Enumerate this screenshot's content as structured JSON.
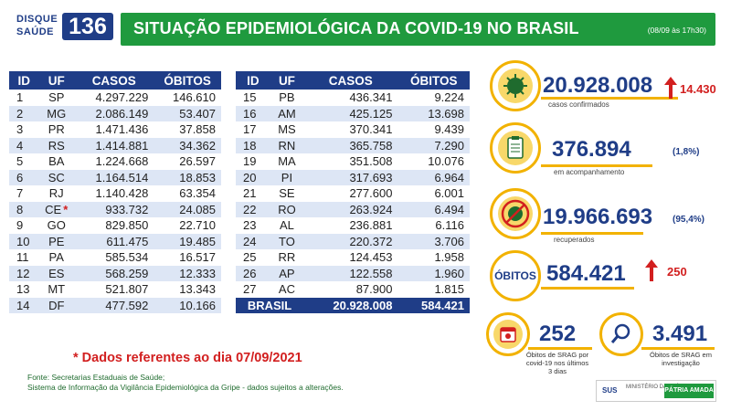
{
  "header": {
    "logo_disque": "DISQUE",
    "logo_saude": "SAÚDE",
    "logo_number": "136",
    "title": "SITUAÇÃO EPIDEMIOLÓGICA DA COVID-19 NO BRASIL",
    "timestamp": "(08/09 às 17h30)"
  },
  "table": {
    "headers": [
      "ID",
      "UF",
      "CASOS",
      "ÓBITOS"
    ],
    "left_rows": [
      [
        "1",
        "SP",
        "4.297.229",
        "146.610"
      ],
      [
        "2",
        "MG",
        "2.086.149",
        "53.407"
      ],
      [
        "3",
        "PR",
        "1.471.436",
        "37.858"
      ],
      [
        "4",
        "RS",
        "1.414.881",
        "34.362"
      ],
      [
        "5",
        "BA",
        "1.224.668",
        "26.597"
      ],
      [
        "6",
        "SC",
        "1.164.514",
        "18.853"
      ],
      [
        "7",
        "RJ",
        "1.140.428",
        "63.354"
      ],
      [
        "8",
        "CE",
        "933.732",
        "24.085"
      ],
      [
        "9",
        "GO",
        "829.850",
        "22.710"
      ],
      [
        "10",
        "PE",
        "611.475",
        "19.485"
      ],
      [
        "11",
        "PA",
        "585.534",
        "16.517"
      ],
      [
        "12",
        "ES",
        "568.259",
        "12.333"
      ],
      [
        "13",
        "MT",
        "521.807",
        "13.343"
      ],
      [
        "14",
        "DF",
        "477.592",
        "10.166"
      ]
    ],
    "right_rows": [
      [
        "15",
        "PB",
        "436.341",
        "9.224"
      ],
      [
        "16",
        "AM",
        "425.125",
        "13.698"
      ],
      [
        "17",
        "MS",
        "370.341",
        "9.439"
      ],
      [
        "18",
        "RN",
        "365.758",
        "7.290"
      ],
      [
        "19",
        "MA",
        "351.508",
        "10.076"
      ],
      [
        "20",
        "PI",
        "317.693",
        "6.964"
      ],
      [
        "21",
        "SE",
        "277.600",
        "6.001"
      ],
      [
        "22",
        "RO",
        "263.924",
        "6.494"
      ],
      [
        "23",
        "AL",
        "236.881",
        "6.116"
      ],
      [
        "24",
        "TO",
        "220.372",
        "3.706"
      ],
      [
        "25",
        "RR",
        "124.453",
        "1.958"
      ],
      [
        "26",
        "AP",
        "122.558",
        "1.960"
      ],
      [
        "27",
        "AC",
        "87.900",
        "1.815"
      ]
    ],
    "total": {
      "label": "BRASIL",
      "casos": "20.928.008",
      "obitos": "584.421"
    },
    "star_mark": "*"
  },
  "note": "* Dados referentes ao dia 07/09/2021",
  "source": {
    "line1": "Fonte: Secretarias Estaduais de Saúde;",
    "line2": "Sistema de Informação da Vigilância Epidemiológica da Gripe - dados sujeitos a alterações."
  },
  "stats": {
    "confirmed": {
      "value": "20.928.008",
      "increase": "14.430",
      "label": "casos confirmados",
      "icon": "virus-icon"
    },
    "monitoring": {
      "value": "376.894",
      "pct": "(1,8%)",
      "label": "em acompanhamento",
      "icon": "clipboard-icon"
    },
    "recovered": {
      "value": "19.966.693",
      "pct": "(95,4%)",
      "label": "recuperados",
      "icon": "recovered-virus-icon"
    },
    "deaths": {
      "badge": "ÓBITOS",
      "value": "584.421",
      "increase": "250"
    },
    "srag_deaths": {
      "value": "252",
      "label_line1": "Óbitos de SRAG por",
      "label_line2": "covid-19 nos últimos",
      "label_line3": "3 dias",
      "icon": "calendar-icon"
    },
    "srag_investigation": {
      "value": "3.491",
      "label_line1": "Óbitos de SRAG em",
      "label_line2": "investigação",
      "icon": "magnifier-icon"
    }
  },
  "footer": {
    "sus": "SUS",
    "ministry": "MINISTÉRIO DA SAÚDE",
    "gov": "PÁTRIA AMADA BRASIL"
  },
  "colors": {
    "green": "#1f9a3e",
    "blue": "#1f3d87",
    "yellow": "#f2b200",
    "red": "#d21f1f",
    "row_alt": "#dde6f5"
  }
}
